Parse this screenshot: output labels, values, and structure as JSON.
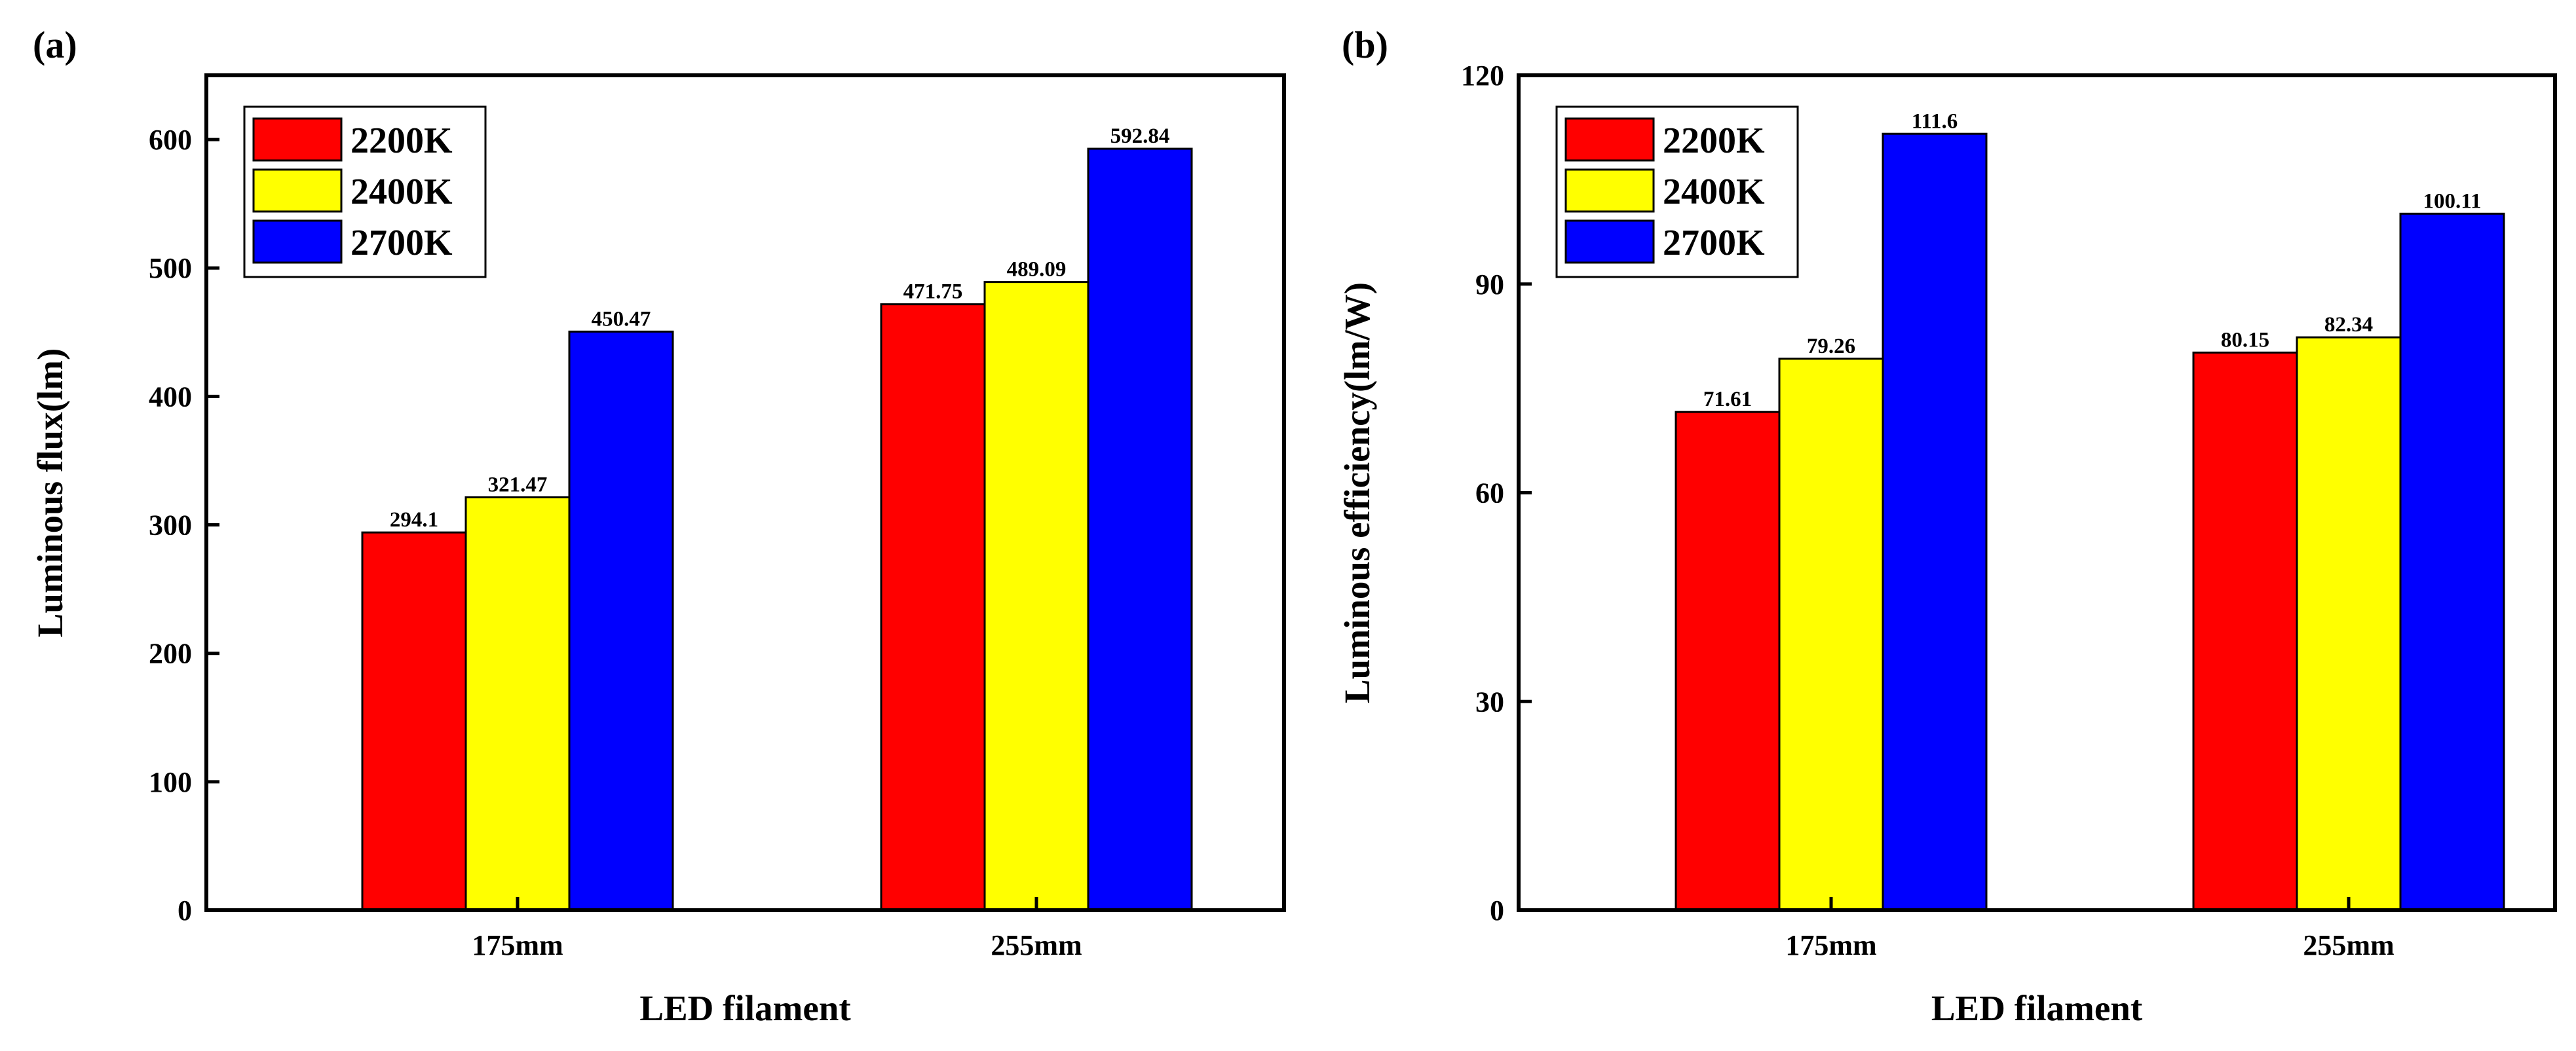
{
  "chart_data": [
    {
      "type": "bar",
      "panel_label": "(a)",
      "title": "",
      "xlabel": "LED filament",
      "ylabel": "Luminous flux(lm)",
      "categories": [
        "175mm",
        "255mm"
      ],
      "ylim": [
        0,
        650
      ],
      "yticks": [
        0,
        100,
        200,
        300,
        400,
        500,
        600
      ],
      "ytick_labels": [
        "0",
        "100",
        "200",
        "300",
        "400",
        "500",
        "600"
      ],
      "series": [
        {
          "name": "2200K",
          "color": "#ff0000",
          "values": [
            294.1,
            471.75
          ],
          "labels": [
            "294.1",
            "471.75"
          ]
        },
        {
          "name": "2400K",
          "color": "#ffff00",
          "values": [
            321.47,
            489.09
          ],
          "labels": [
            "321.47",
            "489.09"
          ]
        },
        {
          "name": "2700K",
          "color": "#0000ff",
          "values": [
            450.47,
            592.84
          ],
          "labels": [
            "450.47",
            "592.84"
          ]
        }
      ],
      "legend": "top-left",
      "grid": false
    },
    {
      "type": "bar",
      "panel_label": "(b)",
      "title": "",
      "xlabel": "LED filament",
      "ylabel": "Luminous efficiency(lm/W)",
      "categories": [
        "175mm",
        "255mm"
      ],
      "ylim": [
        0,
        120
      ],
      "yticks": [
        0,
        30,
        60,
        90,
        120
      ],
      "ytick_labels": [
        "0",
        "30",
        "60",
        "90",
        "120"
      ],
      "series": [
        {
          "name": "2200K",
          "color": "#ff0000",
          "values": [
            71.61,
            80.15
          ],
          "labels": [
            "71.61",
            "80.15"
          ]
        },
        {
          "name": "2400K",
          "color": "#ffff00",
          "values": [
            79.26,
            82.34
          ],
          "labels": [
            "79.26",
            "82.34"
          ]
        },
        {
          "name": "2700K",
          "color": "#0000ff",
          "values": [
            111.6,
            100.11
          ],
          "labels": [
            "111.6",
            "100.11"
          ]
        }
      ],
      "legend": "top-left",
      "grid": false
    }
  ]
}
